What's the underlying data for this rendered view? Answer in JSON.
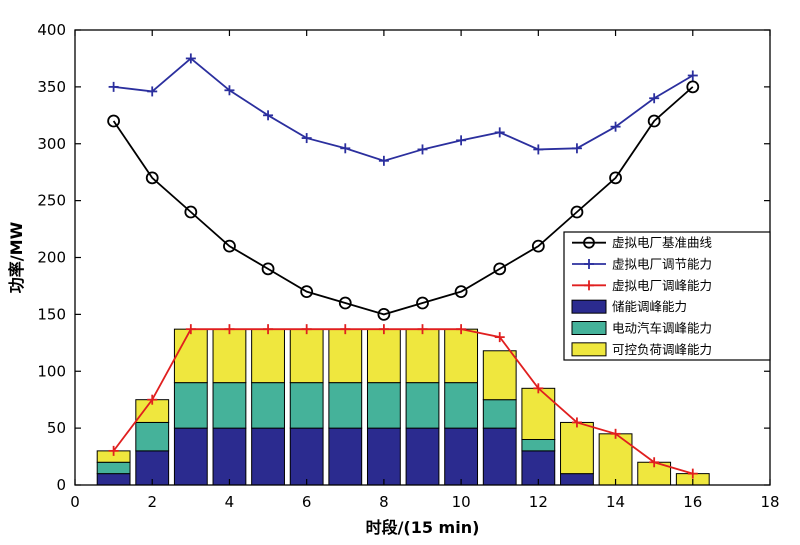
{
  "chart_data": {
    "type": "bar",
    "subtype": "stacked-bars-with-lines",
    "x": [
      1,
      2,
      3,
      4,
      5,
      6,
      7,
      8,
      9,
      10,
      11,
      12,
      13,
      14,
      15,
      16
    ],
    "xlabel": "时段/(15 min)",
    "ylabel": "功率/MW",
    "xlim": [
      0,
      18
    ],
    "ylim": [
      0,
      400
    ],
    "xticks": [
      0,
      2,
      4,
      6,
      8,
      10,
      12,
      14,
      16,
      18
    ],
    "yticks": [
      0,
      50,
      100,
      150,
      200,
      250,
      300,
      350,
      400
    ],
    "grid": false,
    "legend_position": "right-middle-inside",
    "line_series": [
      {
        "name": "虚拟电厂基准曲线",
        "marker": "circle",
        "color": "#000000",
        "values": [
          320,
          270,
          240,
          210,
          190,
          170,
          160,
          150,
          160,
          170,
          190,
          210,
          240,
          270,
          320,
          350
        ]
      },
      {
        "name": "虚拟电厂调节能力",
        "marker": "plus",
        "color": "#2b2f9e",
        "values": [
          350,
          346,
          375,
          347,
          325,
          305,
          296,
          285,
          295,
          303,
          310,
          295,
          296,
          315,
          340,
          360
        ]
      },
      {
        "name": "虚拟电厂调峰能力",
        "marker": "plus",
        "color": "#e01f1f",
        "values": [
          30,
          75,
          137,
          137,
          137,
          137,
          137,
          137,
          137,
          137,
          130,
          85,
          55,
          45,
          20,
          10
        ]
      }
    ],
    "bar_series": [
      {
        "name": "储能调峰能力",
        "color": "#2b2b8f",
        "values": [
          10,
          30,
          50,
          50,
          50,
          50,
          50,
          50,
          50,
          50,
          50,
          30,
          10,
          0,
          0,
          0
        ]
      },
      {
        "name": "电动汽车调峰能力",
        "color": "#45b29a",
        "values": [
          10,
          25,
          40,
          40,
          40,
          40,
          40,
          40,
          40,
          40,
          25,
          10,
          0,
          0,
          0,
          0
        ]
      },
      {
        "name": "可控负荷调峰能力",
        "color": "#efe73e",
        "values": [
          10,
          20,
          47,
          47,
          47,
          47,
          47,
          47,
          47,
          47,
          43,
          45,
          45,
          45,
          20,
          10
        ]
      }
    ],
    "legend_order": [
      "虚拟电厂基准曲线",
      "虚拟电厂调节能力",
      "虚拟电厂调峰能力",
      "储能调峰能力",
      "电动汽车调峰能力",
      "可控负荷调峰能力"
    ]
  }
}
